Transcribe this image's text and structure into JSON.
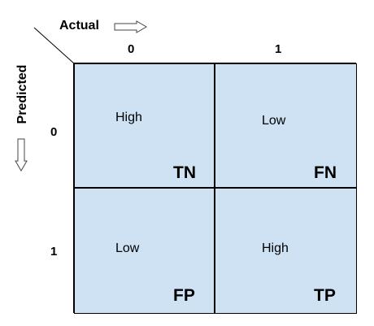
{
  "axes": {
    "actual_label": "Actual",
    "predicted_label": "Predicted",
    "actual_ticks": [
      "0",
      "1"
    ],
    "predicted_ticks": [
      "0",
      "1"
    ]
  },
  "cells": [
    {
      "level": "High",
      "code": "TN"
    },
    {
      "level": "Low",
      "code": "FN"
    },
    {
      "level": "Low",
      "code": "FP"
    },
    {
      "level": "High",
      "code": "TP"
    }
  ],
  "colors": {
    "cell_fill": "#cfe2f3",
    "border": "#000000"
  }
}
